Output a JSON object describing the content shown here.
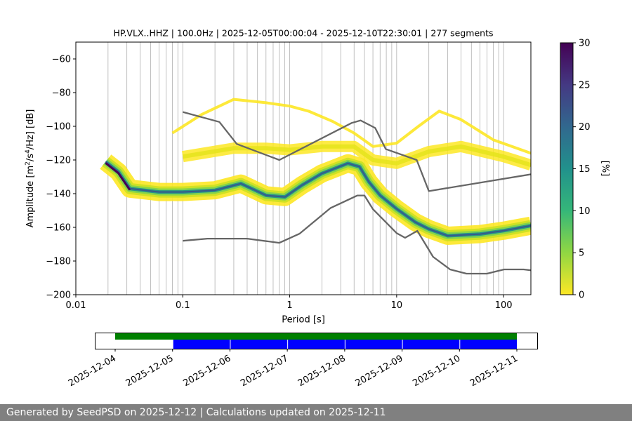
{
  "chart_data": {
    "type": "heatmap",
    "title": "HP.VLX..HHZ | 100.0Hz | 2025-12-05T00:00:04 - 2025-12-10T22:30:01 | 277 segments",
    "xlabel": "Period [s]",
    "ylabel_main": "Amplitude [m",
    "ylabel_sup1": "2",
    "ylabel_mid": "/s",
    "ylabel_sup2": "4",
    "ylabel_end": "/Hz] [dB]",
    "x_scale": "log",
    "xlim": [
      0.01,
      180
    ],
    "ylim": [
      -200,
      -50
    ],
    "x_tick_values": [
      0.01,
      0.1,
      1,
      10,
      100
    ],
    "x_tick_labels": [
      "0.01",
      "0.1",
      "1",
      "10",
      "100"
    ],
    "y_tick_values": [
      -200,
      -180,
      -160,
      -140,
      -120,
      -100,
      -80,
      -60
    ],
    "y_tick_labels": [
      "−200",
      "−180",
      "−160",
      "−140",
      "−120",
      "−100",
      "−80",
      "−60"
    ],
    "grid": "vertical",
    "colorbar": {
      "label": "[%]",
      "range": [
        0,
        30
      ],
      "tick_values": [
        0,
        5,
        10,
        15,
        20,
        25,
        30
      ],
      "tick_labels": [
        "0",
        "5",
        "10",
        "15",
        "20",
        "25",
        "30"
      ],
      "colors": [
        "#fde725",
        "#90d743",
        "#35b779",
        "#21918c",
        "#31688e",
        "#443983",
        "#440154"
      ]
    },
    "noise_model_color": "#666666",
    "high_noise_model": [
      [
        0.1,
        -91.5
      ],
      [
        0.22,
        -97.4
      ],
      [
        0.32,
        -110.5
      ],
      [
        0.8,
        -120
      ],
      [
        3.8,
        -98
      ],
      [
        4.6,
        -96.5
      ],
      [
        6.3,
        -101
      ],
      [
        7.9,
        -113.5
      ],
      [
        15.4,
        -120
      ],
      [
        20,
        -138.5
      ],
      [
        180,
        -128.5
      ]
    ],
    "low_noise_model": [
      [
        0.1,
        -168
      ],
      [
        0.17,
        -166.7
      ],
      [
        0.4,
        -166.7
      ],
      [
        0.8,
        -169.2
      ],
      [
        1.24,
        -163.7
      ],
      [
        2.4,
        -148.6
      ],
      [
        4.3,
        -141.1
      ],
      [
        5.0,
        -141.1
      ],
      [
        6.0,
        -149.2
      ],
      [
        10,
        -163.4
      ],
      [
        12,
        -166.2
      ],
      [
        15.6,
        -162.1
      ],
      [
        21.9,
        -177.5
      ],
      [
        31.6,
        -185
      ],
      [
        45,
        -187.5
      ],
      [
        70,
        -187.5
      ],
      [
        101,
        -185
      ],
      [
        154,
        -185
      ],
      [
        180,
        -185.5
      ]
    ],
    "density_modes": [
      {
        "name": "dominant",
        "points": [
          [
            0.019,
            -121
          ],
          [
            0.025,
            -127
          ],
          [
            0.032,
            -137
          ],
          [
            0.06,
            -139
          ],
          [
            0.1,
            -139
          ],
          [
            0.2,
            -138
          ],
          [
            0.35,
            -134
          ],
          [
            0.6,
            -141
          ],
          [
            0.9,
            -142
          ],
          [
            1.3,
            -135
          ],
          [
            2.0,
            -128
          ],
          [
            3.5,
            -122
          ],
          [
            4.5,
            -124
          ],
          [
            5.5,
            -133
          ],
          [
            7.0,
            -141
          ],
          [
            10,
            -149
          ],
          [
            15,
            -157
          ],
          [
            20,
            -161
          ],
          [
            30,
            -165
          ],
          [
            60,
            -164
          ],
          [
            100,
            -162
          ],
          [
            180,
            -159
          ]
        ]
      },
      {
        "name": "upper-secondary",
        "points": [
          [
            0.1,
            -118
          ],
          [
            0.3,
            -113
          ],
          [
            0.6,
            -113
          ],
          [
            1.0,
            -114
          ],
          [
            2.0,
            -112
          ],
          [
            4.0,
            -112
          ],
          [
            6.0,
            -120
          ],
          [
            10,
            -122
          ],
          [
            20,
            -115
          ],
          [
            40,
            -112
          ],
          [
            100,
            -118
          ],
          [
            180,
            -123
          ]
        ]
      },
      {
        "name": "upper-envelope",
        "points": [
          [
            0.08,
            -104
          ],
          [
            0.15,
            -93
          ],
          [
            0.3,
            -84
          ],
          [
            0.6,
            -86
          ],
          [
            1.0,
            -88
          ],
          [
            1.5,
            -91
          ],
          [
            2.5,
            -97
          ],
          [
            4.0,
            -104
          ],
          [
            6.0,
            -112
          ],
          [
            10,
            -110
          ],
          [
            16,
            -100
          ],
          [
            25,
            -91
          ],
          [
            40,
            -96
          ],
          [
            80,
            -108
          ],
          [
            180,
            -116
          ]
        ]
      }
    ],
    "timeline": {
      "tick_labels": [
        "2025-12-04",
        "2025-12-05",
        "2025-12-06",
        "2025-12-07",
        "2025-12-08",
        "2025-12-09",
        "2025-12-10",
        "2025-12-11"
      ],
      "available_range": [
        "2025-12-04",
        "2025-12-11"
      ],
      "available_color": "#008000",
      "used_segments": [
        [
          "2025-12-05",
          "2025-12-06"
        ],
        [
          "2025-12-06",
          "2025-12-07"
        ],
        [
          "2025-12-07",
          "2025-12-08"
        ],
        [
          "2025-12-08",
          "2025-12-09"
        ],
        [
          "2025-12-09",
          "2025-12-10"
        ],
        [
          "2025-12-10",
          "2025-12-11"
        ]
      ],
      "used_color": "#0000ff"
    }
  },
  "footer": {
    "text": "Generated by SeedPSD on 2025-12-12 | Calculations updated on 2025-12-11"
  }
}
